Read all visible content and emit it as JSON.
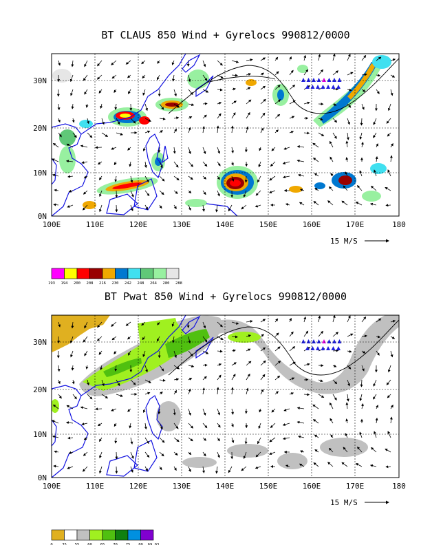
{
  "panels": [
    {
      "title": "BT CLAUS 850 Wind + Gyrelocs 990812/0000",
      "scale_label": "15 M/S",
      "lat_labels": [
        "0N",
        "10N",
        "20N",
        "30N"
      ],
      "lon_labels": [
        "100E",
        "110E",
        "120E",
        "130E",
        "140E",
        "150E",
        "160E",
        "170E",
        "180"
      ],
      "legend": {
        "colors": [
          "#ff00ff",
          "#ffff00",
          "#ff0000",
          "#990000",
          "#f0a800",
          "#0078d0",
          "#40e0f0",
          "#60c878",
          "#98f0a0",
          "#e6e6e6"
        ],
        "labels": [
          "193",
          "194",
          "200",
          "208",
          "216",
          "230",
          "242",
          "248",
          "264",
          "280",
          "288"
        ]
      }
    },
    {
      "title": "BT Pwat 850 Wind + Gyrelocs 990812/0000",
      "scale_label": "15 M/S",
      "lat_labels": [
        "0N",
        "10N",
        "20N",
        "30N"
      ],
      "lon_labels": [
        "100E",
        "110E",
        "120E",
        "130E",
        "140E",
        "150E",
        "160E",
        "170E",
        "180"
      ],
      "legend": {
        "colors": [
          "#e0b020",
          "#ffffff",
          "#c0c0c0",
          "#a0f020",
          "#50c010",
          "#108010",
          "#0090e0",
          "#8000d0"
        ],
        "labels": [
          "0",
          "35",
          "55",
          "60",
          "65",
          "70",
          "75",
          "80",
          "69.03"
        ]
      }
    }
  ],
  "map_extent": {
    "lon_min": 100,
    "lon_max": 180,
    "lat_min": 0,
    "lat_max": 36
  }
}
